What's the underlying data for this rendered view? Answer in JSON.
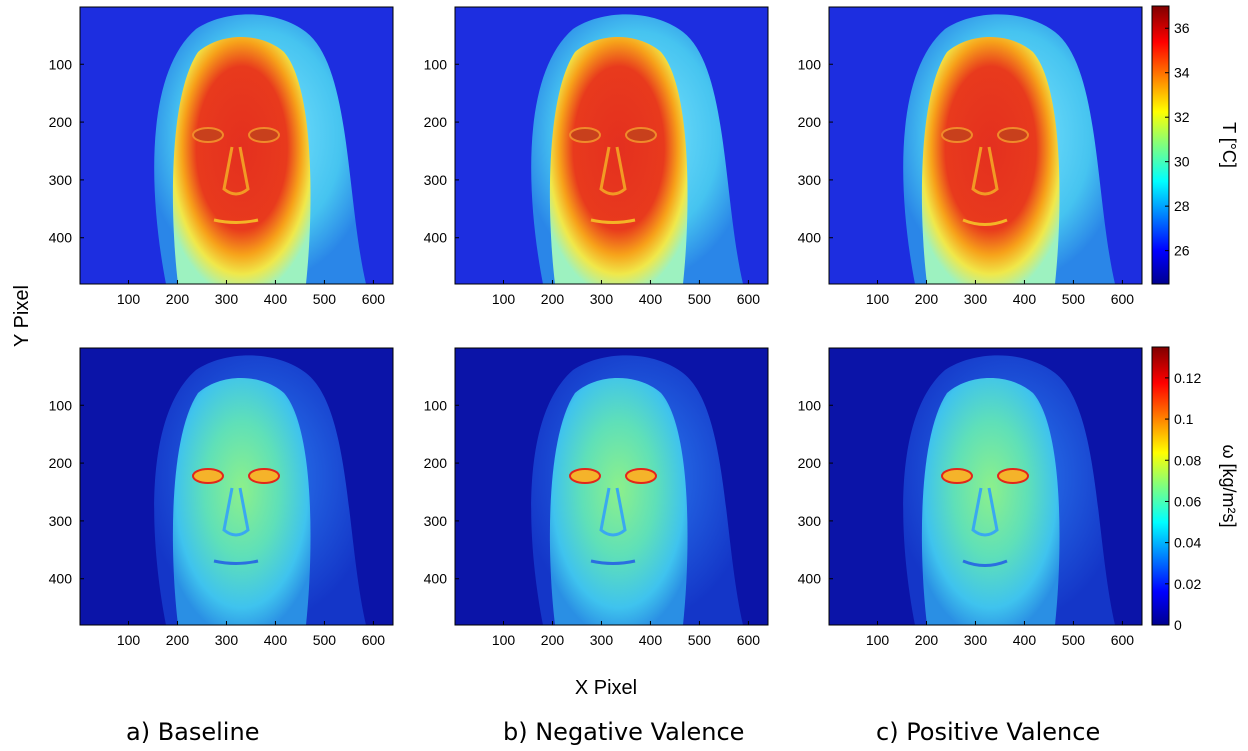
{
  "figure": {
    "xlabel": "X Pixel",
    "ylabel": "Y Pixel",
    "captions": [
      "a) Baseline",
      "b) Negative Valence",
      "c) Positive Valence"
    ]
  },
  "chart_data": {
    "type": "heatmap",
    "colormap": "jet",
    "x_ticks": [
      100,
      200,
      300,
      400,
      500,
      600
    ],
    "y_ticks": [
      100,
      200,
      300,
      400
    ],
    "xlim": [
      1,
      640
    ],
    "ylim": [
      480,
      1
    ],
    "rows": [
      {
        "quantity": "temperature",
        "colorbar_label": "T [°C]",
        "colorbar_range": [
          24.5,
          37
        ],
        "colorbar_ticks": [
          26,
          28,
          30,
          32,
          34,
          36
        ],
        "panels": [
          "a) Baseline",
          "b) Negative Valence",
          "c) Positive Valence"
        ]
      },
      {
        "quantity": "blood perfusion",
        "colorbar_label": "ω [kg/m²s]",
        "colorbar_range": [
          0,
          0.135
        ],
        "colorbar_ticks": [
          0,
          0.02,
          0.04,
          0.06,
          0.08,
          0.1,
          0.12
        ],
        "panels": [
          "a) Baseline",
          "b) Negative Valence",
          "c) Positive Valence"
        ]
      }
    ],
    "colors": {
      "background_low": "#0b14a8",
      "face_high": "#e2261b"
    }
  }
}
